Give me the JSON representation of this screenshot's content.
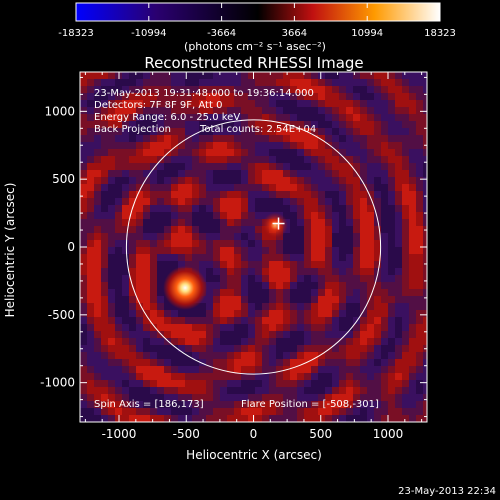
{
  "chart_data": {
    "type": "heatmap",
    "title": "Reconstructed RHESSI Image",
    "xlabel": "Heliocentric X (arcsec)",
    "ylabel": "Heliocentric Y (arcsec)",
    "xlim": [
      -1290,
      1290
    ],
    "ylim": [
      -1290,
      1290
    ],
    "xticks": [
      -1000,
      -500,
      0,
      500,
      1000
    ],
    "yticks": [
      -1000,
      -500,
      0,
      500,
      1000
    ],
    "colorbar": {
      "min": -18323,
      "max": 18323,
      "ticks": [
        -18323,
        -10994,
        -3664,
        3664,
        10994,
        18323
      ],
      "label": "(photons cm⁻² s⁻¹ asec⁻²)",
      "colors": [
        "#0000ff",
        "#2a0070",
        "#000000",
        "#c01010",
        "#ff9a00",
        "#ffffff"
      ]
    },
    "annotations": {
      "time_range": "23-May-2013 19:31:48.000 to 19:36:14.000",
      "detectors": "Detectors: 7F 8F 9F, Att 0",
      "energy_range": "Energy Range: 6.0 - 25.0 keV",
      "method": "Back Projection",
      "total_counts": "Total counts: 2.54E+04",
      "spin_axis": "Spin Axis = [186,173]",
      "flare_position": "Flare Position = [-508,-301]"
    },
    "solar_limb_radius": 945,
    "crosshair": [
      186,
      173
    ],
    "sources": [
      {
        "x": -508,
        "y": -301,
        "peak": 18323
      },
      {
        "x": 160,
        "y": 160,
        "peak": 9500
      }
    ]
  },
  "footer": {
    "timestamp": "23-May-2013 22:34"
  }
}
